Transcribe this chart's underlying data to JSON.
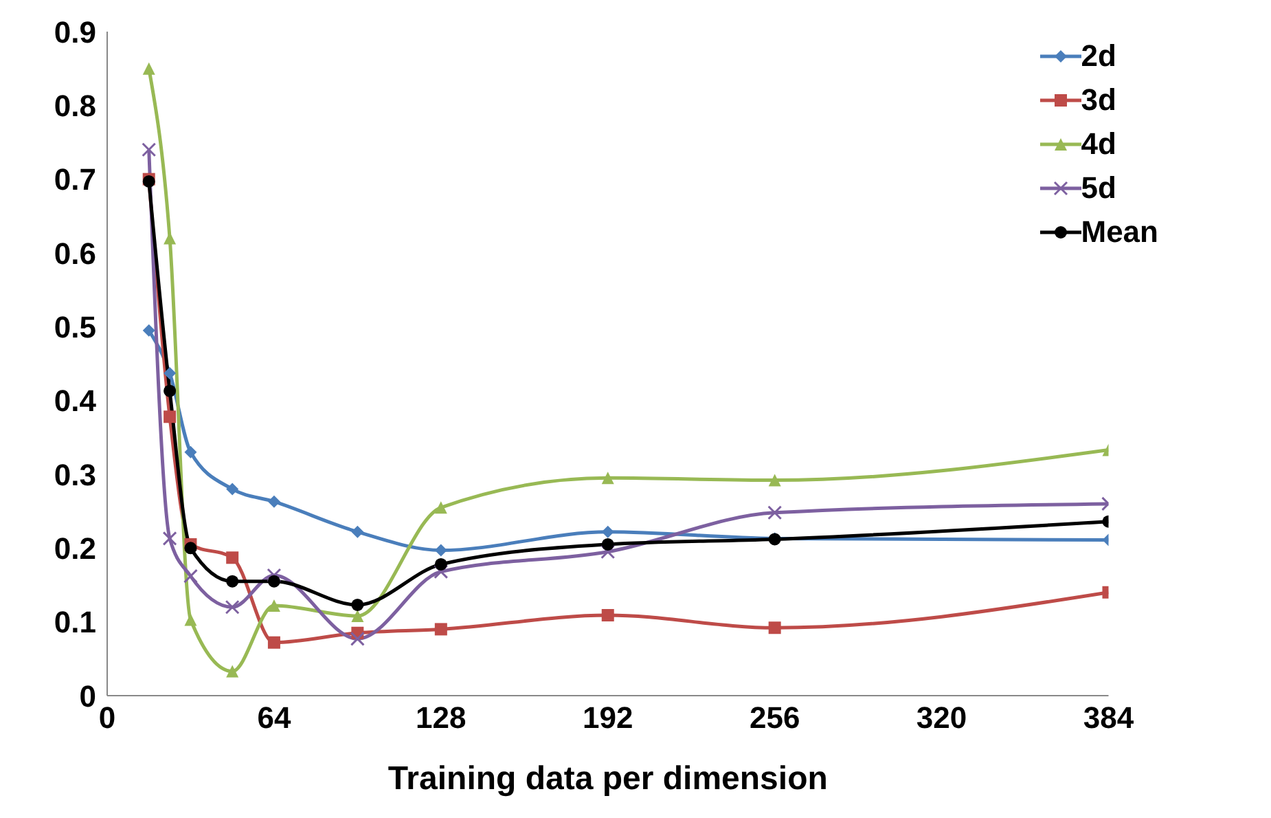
{
  "chart_data": {
    "type": "line",
    "xlabel": "Training data per dimension",
    "x": [
      16,
      24,
      32,
      48,
      64,
      96,
      128,
      192,
      256,
      384
    ],
    "xlim": [
      0,
      384
    ],
    "xticks": [
      0,
      64,
      128,
      192,
      256,
      320,
      384
    ],
    "ylim": [
      0,
      0.9
    ],
    "yticks": [
      0,
      0.1,
      0.2,
      0.3,
      0.4,
      0.5,
      0.6,
      0.7,
      0.8,
      0.9
    ],
    "grid": false,
    "legend": "top right",
    "series": [
      {
        "name": "2d",
        "color": "#4a7ebb",
        "marker": "diamond",
        "values": [
          0.495,
          0.437,
          0.33,
          0.28,
          0.263,
          0.222,
          0.197,
          0.222,
          0.213,
          0.211
        ]
      },
      {
        "name": "3d",
        "color": "#be4b48",
        "marker": "square",
        "values": [
          0.7,
          0.378,
          0.205,
          0.187,
          0.072,
          0.085,
          0.09,
          0.109,
          0.092,
          0.14
        ]
      },
      {
        "name": "4d",
        "color": "#98b954",
        "marker": "triangle",
        "values": [
          0.85,
          0.62,
          0.103,
          0.033,
          0.122,
          0.108,
          0.255,
          0.295,
          0.292,
          0.333
        ]
      },
      {
        "name": "5d",
        "color": "#7d60a0",
        "marker": "cross",
        "values": [
          0.74,
          0.213,
          0.162,
          0.12,
          0.163,
          0.077,
          0.168,
          0.195,
          0.248,
          0.26
        ]
      },
      {
        "name": "Mean",
        "color": "#000000",
        "marker": "circle",
        "values": [
          0.697,
          0.413,
          0.2,
          0.155,
          0.155,
          0.123,
          0.178,
          0.205,
          0.212,
          0.236
        ]
      }
    ]
  }
}
